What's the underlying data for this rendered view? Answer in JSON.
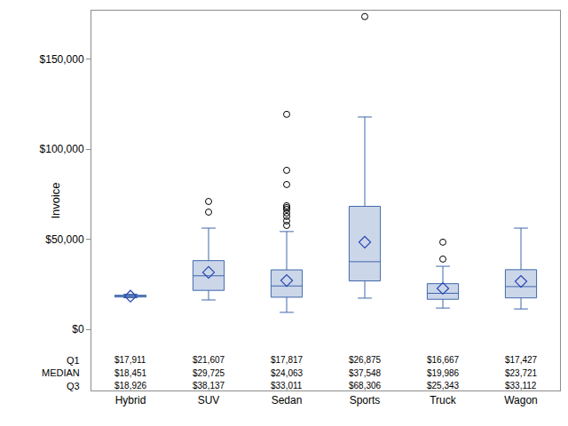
{
  "chart_data": {
    "type": "box",
    "y_label": "Invoice",
    "categories": [
      "Hybrid",
      "SUV",
      "Sedan",
      "Sports",
      "Truck",
      "Wagon"
    ],
    "color": "#3f68ac",
    "grid": false,
    "ylim": [
      -34000,
      177000
    ],
    "yticks": [
      {
        "value": 0,
        "label": "$0"
      },
      {
        "value": 50000,
        "label": "$50,000"
      },
      {
        "value": 100000,
        "label": "$100,000"
      },
      {
        "value": 150000,
        "label": "$150,000"
      }
    ],
    "whisker_low": [
      17500,
      16300,
      9400,
      17300,
      11800,
      11300
    ],
    "whisker_high": [
      19500,
      56200,
      54300,
      117900,
      35000,
      56200
    ],
    "mean": [
      18400,
      31600,
      27100,
      48400,
      22700,
      26600
    ],
    "outliers": [
      [],
      [
        71000,
        65100
      ],
      [
        119400,
        88300,
        80400,
        68600,
        67600,
        66600,
        64600,
        62700,
        60200,
        57700
      ],
      [
        173700
      ],
      [
        48400,
        39000
      ],
      []
    ],
    "stats": [
      {
        "label": "Q1",
        "values": [
          17911,
          21607,
          17817,
          26875,
          16667,
          17427
        ],
        "value_labels": [
          "$17,911",
          "$21,607",
          "$17,817",
          "$26,875",
          "$16,667",
          "$17,427"
        ]
      },
      {
        "label": "MEDIAN",
        "values": [
          18451,
          29725,
          24063,
          37548,
          19986,
          23721
        ],
        "value_labels": [
          "$18,451",
          "$29,725",
          "$24,063",
          "$37,548",
          "$19,986",
          "$23,721"
        ]
      },
      {
        "label": "Q3",
        "values": [
          18926,
          38137,
          33011,
          68306,
          25343,
          33112
        ],
        "value_labels": [
          "$18,926",
          "$38,137",
          "$33,011",
          "$68,306",
          "$25,343",
          "$33,112"
        ]
      }
    ]
  }
}
